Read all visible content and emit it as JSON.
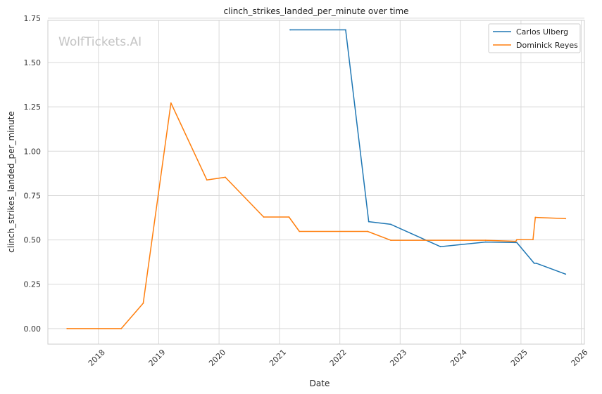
{
  "watermark": "WolfTickets.AI",
  "chart_data": {
    "type": "line",
    "title": "clinch_strikes_landed_per_minute over time",
    "xlabel": "Date",
    "ylabel": "clinch_strikes_landed_per_minute",
    "xlim": [
      "2017-03-01",
      "2026-01-20"
    ],
    "ylim": [
      -0.0875,
      1.7375
    ],
    "x_ticks": [
      "2018",
      "2019",
      "2020",
      "2021",
      "2022",
      "2023",
      "2024",
      "2025",
      "2026"
    ],
    "y_ticks": [
      "0.00",
      "0.25",
      "0.50",
      "0.75",
      "1.00",
      "1.25",
      "1.50",
      "1.75"
    ],
    "grid": true,
    "legend_position": "top-right",
    "series": [
      {
        "name": "Carlos Ulberg",
        "color": "#1f77b4",
        "points": [
          {
            "x": "2021-03-06",
            "y": 1.684
          },
          {
            "x": "2022-02-05",
            "y": 1.684
          },
          {
            "x": "2022-06-25",
            "y": 0.603
          },
          {
            "x": "2022-11-05",
            "y": 0.588
          },
          {
            "x": "2023-09-02",
            "y": 0.462
          },
          {
            "x": "2024-06-01",
            "y": 0.488
          },
          {
            "x": "2024-12-07",
            "y": 0.485
          },
          {
            "x": "2025-03-22",
            "y": 0.368
          },
          {
            "x": "2025-04-05",
            "y": 0.368
          },
          {
            "x": "2025-09-28",
            "y": 0.307
          }
        ]
      },
      {
        "name": "Dominick Reyes",
        "color": "#ff7f0e",
        "points": [
          {
            "x": "2017-06-25",
            "y": 0.0
          },
          {
            "x": "2018-05-19",
            "y": 0.0
          },
          {
            "x": "2018-09-29",
            "y": 0.143
          },
          {
            "x": "2019-03-16",
            "y": 1.272
          },
          {
            "x": "2019-10-19",
            "y": 0.838
          },
          {
            "x": "2020-02-08",
            "y": 0.853
          },
          {
            "x": "2020-09-27",
            "y": 0.629
          },
          {
            "x": "2021-02-27",
            "y": 0.629
          },
          {
            "x": "2021-05-01",
            "y": 0.548
          },
          {
            "x": "2022-06-18",
            "y": 0.548
          },
          {
            "x": "2022-11-05",
            "y": 0.498
          },
          {
            "x": "2024-06-01",
            "y": 0.498
          },
          {
            "x": "2024-12-01",
            "y": 0.492
          },
          {
            "x": "2024-12-07",
            "y": 0.501
          },
          {
            "x": "2025-03-15",
            "y": 0.502
          },
          {
            "x": "2025-03-29",
            "y": 0.627
          },
          {
            "x": "2025-09-28",
            "y": 0.62
          }
        ]
      }
    ]
  }
}
